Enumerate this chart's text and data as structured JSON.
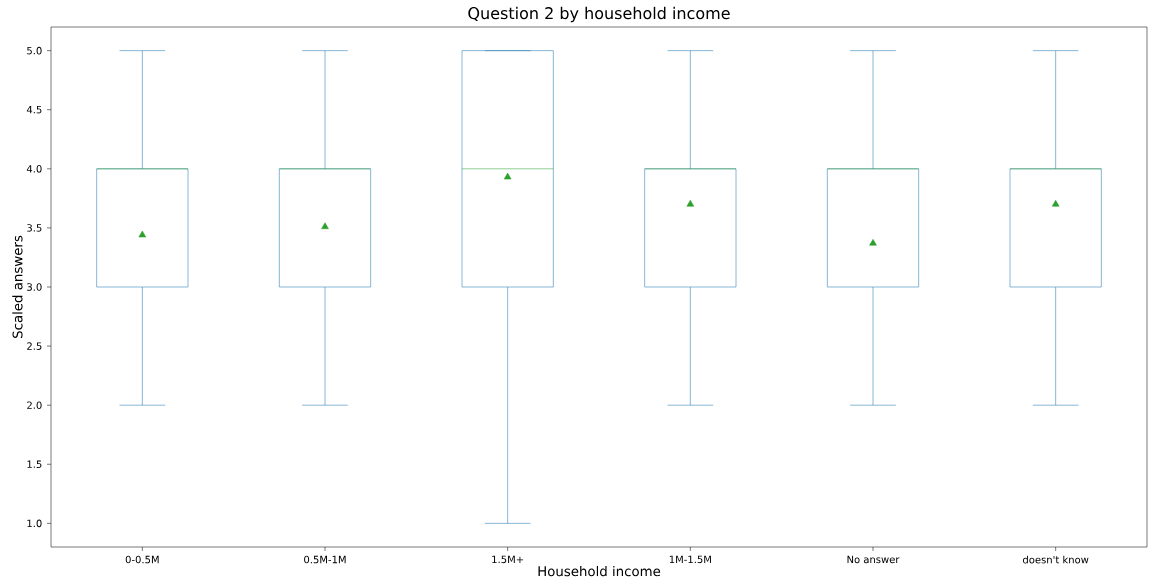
{
  "chart_data": {
    "type": "box",
    "title": "Question 2 by household income",
    "xlabel": "Household income",
    "ylabel": "Scaled answers",
    "categories": [
      "0-0.5M",
      "0.5M-1M",
      "1.5M+",
      "1M-1.5M",
      "No answer",
      "doesn't know"
    ],
    "color": "#1f77b4",
    "marker": "triangle",
    "boxes": [
      {
        "low": 2,
        "q1": 3,
        "median": 4,
        "q3": 4,
        "high": 5,
        "mean": 3.44
      },
      {
        "low": 2,
        "q1": 3,
        "median": 4,
        "q3": 4,
        "high": 5,
        "mean": 3.51
      },
      {
        "low": 1,
        "q1": 3,
        "median": 4,
        "q3": 5,
        "high": 5,
        "mean": 3.93
      },
      {
        "low": 2,
        "q1": 3,
        "median": 4,
        "q3": 4,
        "high": 5,
        "mean": 3.7
      },
      {
        "low": 2,
        "q1": 3,
        "median": 4,
        "q3": 4,
        "high": 5,
        "mean": 3.37
      },
      {
        "low": 2,
        "q1": 3,
        "median": 4,
        "q3": 4,
        "high": 5,
        "mean": 3.7
      }
    ],
    "ylim": [
      0.8,
      5.2
    ],
    "yticks": [
      {
        "value": 1,
        "label": "1.0"
      },
      {
        "value": 1.5,
        "label": "1.5"
      },
      {
        "value": 2,
        "label": "2.0"
      },
      {
        "value": 2.5,
        "label": "2.5"
      },
      {
        "value": 3,
        "label": "3.0"
      },
      {
        "value": 3.5,
        "label": "3.5"
      },
      {
        "value": 4,
        "label": "4.0"
      },
      {
        "value": 4.5,
        "label": "4.5"
      },
      {
        "value": 5,
        "label": "5.0"
      }
    ],
    "grid": false
  }
}
